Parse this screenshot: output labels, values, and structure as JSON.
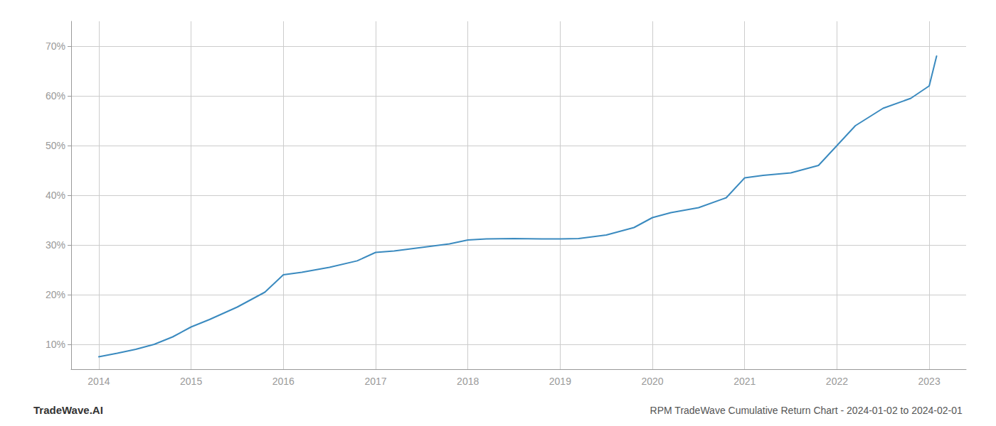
{
  "chart_data": {
    "type": "line",
    "title": "RPM TradeWave Cumulative Return Chart - 2024-01-02 to 2024-02-01",
    "annotations": [
      "TradeWave.AI"
    ],
    "x": [
      2014.0,
      2014.2,
      2014.4,
      2014.6,
      2014.8,
      2015.0,
      2015.2,
      2015.5,
      2015.8,
      2016.0,
      2016.2,
      2016.5,
      2016.8,
      2017.0,
      2017.2,
      2017.5,
      2017.8,
      2018.0,
      2018.2,
      2018.5,
      2018.8,
      2019.0,
      2019.2,
      2019.5,
      2019.8,
      2020.0,
      2020.2,
      2020.5,
      2020.8,
      2021.0,
      2021.2,
      2021.5,
      2021.8,
      2022.0,
      2022.2,
      2022.5,
      2022.8,
      2023.0,
      2023.08
    ],
    "values": [
      7.5,
      8.2,
      9.0,
      10.0,
      11.5,
      13.5,
      15.0,
      17.5,
      20.5,
      24.0,
      24.5,
      25.5,
      26.8,
      28.5,
      28.8,
      29.5,
      30.2,
      31.0,
      31.2,
      31.3,
      31.2,
      31.2,
      31.3,
      32.0,
      33.5,
      35.5,
      36.5,
      37.5,
      39.5,
      43.5,
      44.0,
      44.5,
      46.0,
      50.0,
      54.0,
      57.5,
      59.5,
      62.0,
      68.0
    ],
    "color": "#3a8abf",
    "xlim": [
      2013.7,
      2023.4
    ],
    "xticks": [
      2014,
      2015,
      2016,
      2017,
      2018,
      2019,
      2020,
      2021,
      2022,
      2023
    ],
    "ylim": [
      5,
      75
    ],
    "yticks": [
      {
        "value": 10,
        "label": "10%"
      },
      {
        "value": 20,
        "label": "20%"
      },
      {
        "value": 30,
        "label": "30%"
      },
      {
        "value": 40,
        "label": "40%"
      },
      {
        "value": 50,
        "label": "50%"
      },
      {
        "value": 60,
        "label": "60%"
      },
      {
        "value": 70,
        "label": "70%"
      }
    ],
    "grid": true
  }
}
